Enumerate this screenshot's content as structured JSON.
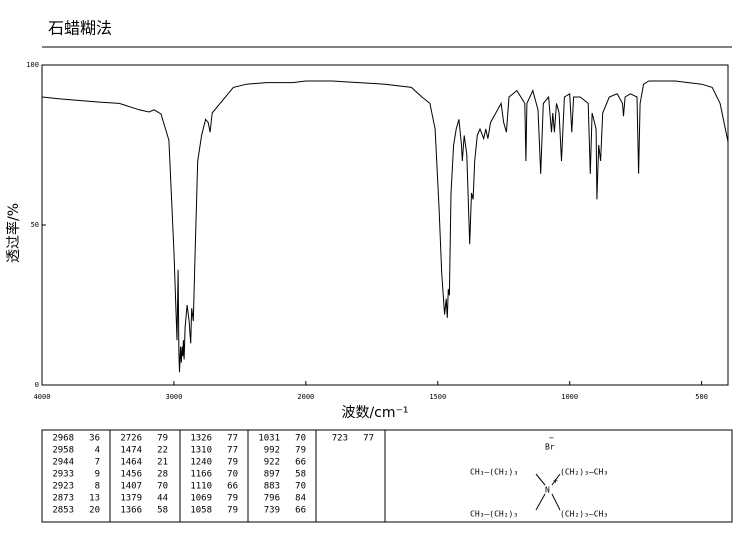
{
  "chart_data": {
    "type": "line",
    "title": "石蜡糊法",
    "x_label": "波数/cm⁻¹",
    "y_label": "透过率/%",
    "xlim": [
      4000,
      400
    ],
    "xticks": [
      4000,
      3000,
      2000,
      1500,
      1000,
      500
    ],
    "xbreak": 2000,
    "xbreak_scale": 2,
    "ylim": [
      0,
      100
    ],
    "yticks": [
      0,
      50,
      100
    ],
    "color": "#000000",
    "x": [
      4000,
      3865,
      3564,
      3414,
      3263,
      3188,
      3150,
      3098,
      3038,
      3000,
      2977,
      2968,
      2962,
      2958,
      2950,
      2944,
      2938,
      2933,
      2928,
      2923,
      2915,
      2900,
      2885,
      2873,
      2865,
      2853,
      2840,
      2820,
      2790,
      2760,
      2740,
      2726,
      2710,
      2650,
      2550,
      2450,
      2300,
      2100,
      2000,
      1900,
      1800,
      1700,
      1600,
      1560,
      1530,
      1510,
      1495,
      1485,
      1474,
      1468,
      1464,
      1460,
      1456,
      1450,
      1440,
      1430,
      1420,
      1410,
      1407,
      1400,
      1390,
      1379,
      1372,
      1366,
      1360,
      1350,
      1340,
      1326,
      1318,
      1310,
      1300,
      1280,
      1260,
      1250,
      1240,
      1230,
      1200,
      1170,
      1166,
      1162,
      1140,
      1120,
      1110,
      1100,
      1080,
      1069,
      1064,
      1058,
      1050,
      1040,
      1031,
      1020,
      1000,
      992,
      985,
      960,
      930,
      922,
      915,
      900,
      897,
      890,
      883,
      875,
      850,
      820,
      800,
      796,
      790,
      770,
      745,
      739,
      733,
      720,
      700,
      600,
      500,
      460,
      430,
      400
    ],
    "values": [
      90,
      89.4,
      88.4,
      88,
      86,
      85.3,
      86,
      84.7,
      76.5,
      42,
      14,
      36,
      10,
      4,
      12,
      7,
      12,
      9,
      14,
      8,
      18,
      25,
      20,
      13,
      24,
      20,
      40,
      70,
      78,
      83,
      82,
      79,
      85,
      88,
      93,
      94,
      94.5,
      94.5,
      95,
      95,
      94.5,
      94,
      93,
      90,
      88,
      80,
      55,
      35,
      22,
      27,
      21,
      30,
      28,
      60,
      75,
      80,
      83,
      75,
      70,
      78,
      72,
      44,
      60,
      58,
      70,
      78,
      80,
      77,
      80,
      77,
      82,
      85,
      88,
      82,
      79,
      90,
      92,
      88,
      70,
      88,
      92,
      86,
      66,
      88,
      90,
      79,
      85,
      79,
      88,
      85,
      70,
      90,
      91,
      79,
      90,
      90,
      88,
      66,
      85,
      80,
      58,
      75,
      70,
      85,
      90,
      91,
      88,
      84,
      90,
      91,
      90,
      66,
      88,
      94,
      95,
      95,
      94,
      93,
      88,
      76
    ]
  },
  "peak_table": [
    [
      2968,
      36
    ],
    [
      2958,
      4
    ],
    [
      2944,
      7
    ],
    [
      2933,
      9
    ],
    [
      2923,
      8
    ],
    [
      2873,
      13
    ],
    [
      2853,
      20
    ],
    [
      2726,
      79
    ],
    [
      1474,
      22
    ],
    [
      1464,
      21
    ],
    [
      1456,
      28
    ],
    [
      1407,
      70
    ],
    [
      1379,
      44
    ],
    [
      1366,
      58
    ],
    [
      1326,
      77
    ],
    [
      1310,
      77
    ],
    [
      1240,
      79
    ],
    [
      1166,
      70
    ],
    [
      1110,
      66
    ],
    [
      1069,
      79
    ],
    [
      1058,
      79
    ],
    [
      1031,
      70
    ],
    [
      992,
      79
    ],
    [
      922,
      66
    ],
    [
      897,
      58
    ],
    [
      883,
      70
    ],
    [
      796,
      84
    ],
    [
      739,
      66
    ],
    [
      723,
      77
    ]
  ],
  "structure": {
    "anion": "Br",
    "anion_charge": "−",
    "center": "N",
    "center_charge": "+",
    "groups": [
      "CH₃—(CH₂)₃",
      "(CH₂)₃—CH₃",
      "CH₃—(CH₂)₃",
      "(CH₂)₃—CH₃"
    ]
  }
}
